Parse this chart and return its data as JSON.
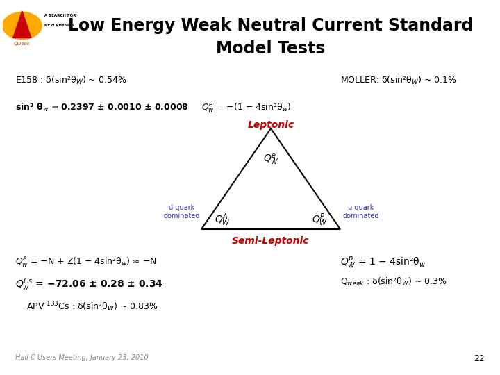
{
  "title_line1": "Low Energy Weak Neutral Current Standard",
  "title_line2": "Model Tests",
  "title_fontsize": 17,
  "bg_color": "#ffffff",
  "text_color": "#000000",
  "red_color": "#cc0000",
  "blue_color": "#3333aa",
  "e158_text": "E158 : δ(sin²θ$_{W}$) ~ 0.54%",
  "moller_text": "MOLLER: δ(sin²θ$_{W}$) ~ 0.1%",
  "sin2_text": "sin² θ$_{w}$ = 0.2397 ± 0.0010 ± 0.0008",
  "qe_text": "$Q^{e}_{w}$ = −(1 − 4sin²θ$_{w}$)",
  "leptonic_text": "Leptonic",
  "semileptonic_text": "Semi-Leptonic",
  "qA_label": "$Q^{A}_{W}$",
  "qP_label": "$Q^{P}_{W}$",
  "qe_label": "$Q^{e}_{W}$",
  "d_quark_text": "d quark\ndominated",
  "u_quark_text": "u quark\ndominated",
  "qA_eq": "$Q^{A}_{w}$ = −N + Z(1 − 4sin²θ$_{w}$) ≈ −N",
  "qCs_eq": "$Q^{Cs}_{w}$ = −72.06 ± 0.28 ± 0.34",
  "qP_eq": "$Q^{p}_{W}$ = 1 − 4sin²θ$_{w}$",
  "qweak_text": "Q$_{weak}$ : δ(sin²θ$_{W}$) ~ 0.3%",
  "apv_text": "APV $^{133}$Cs : δ(sin²θ$_{W}$) ~ 0.83%",
  "footer_text": "Hall C Users Meeting, January 23, 2010",
  "page_number": "22"
}
